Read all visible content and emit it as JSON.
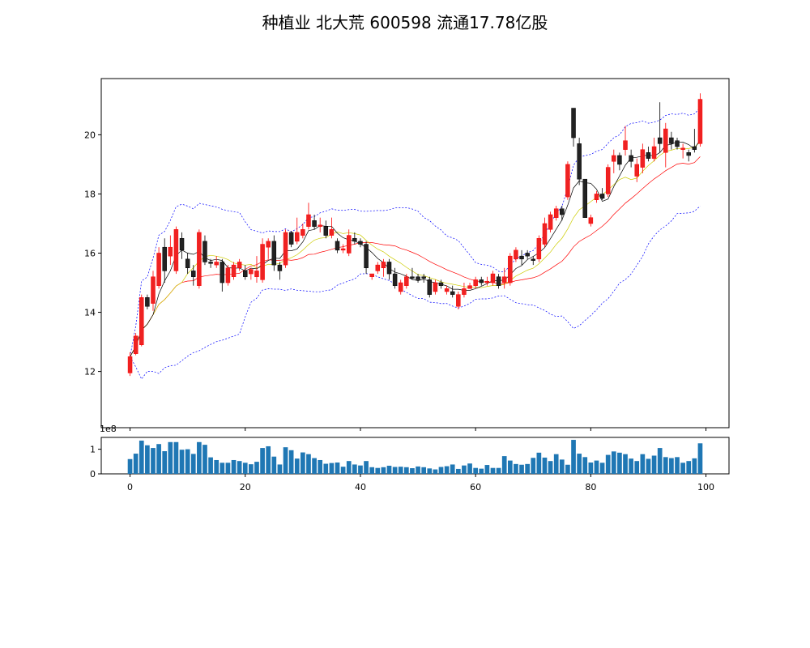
{
  "title": "种植业 北大荒 600598 流通17.78亿股",
  "colors": {
    "up": "#ff0000",
    "down": "#000000",
    "ma5": "#000000",
    "ma10": "#cccc00",
    "ma20": "#ff0000",
    "boll": "#0000ff",
    "volume": "#1f77b4"
  },
  "chart_data": [
    {
      "type": "candlestick",
      "name": "price",
      "ylim": [
        10.1,
        21.9
      ],
      "yticks": [
        12,
        14,
        16,
        18,
        20
      ],
      "xlim": [
        -5,
        104
      ],
      "xticks": [
        0,
        20,
        40,
        60,
        80,
        100
      ],
      "grid": false,
      "candles": [
        {
          "o": 11.95,
          "h": 12.65,
          "l": 11.85,
          "c": 12.5
        },
        {
          "o": 12.6,
          "h": 13.3,
          "l": 12.55,
          "c": 13.2
        },
        {
          "o": 12.9,
          "h": 14.6,
          "l": 12.85,
          "c": 14.5
        },
        {
          "o": 14.5,
          "h": 14.6,
          "l": 14.1,
          "c": 14.2
        },
        {
          "o": 14.3,
          "h": 15.4,
          "l": 14.05,
          "c": 15.2
        },
        {
          "o": 14.9,
          "h": 16.2,
          "l": 14.8,
          "c": 16.0
        },
        {
          "o": 16.2,
          "h": 16.5,
          "l": 15.0,
          "c": 15.4
        },
        {
          "o": 15.9,
          "h": 16.6,
          "l": 15.6,
          "c": 16.2
        },
        {
          "o": 15.4,
          "h": 16.9,
          "l": 15.3,
          "c": 16.8
        },
        {
          "o": 16.5,
          "h": 16.7,
          "l": 15.8,
          "c": 16.1
        },
        {
          "o": 15.8,
          "h": 16.0,
          "l": 15.3,
          "c": 15.5
        },
        {
          "o": 15.4,
          "h": 15.6,
          "l": 14.9,
          "c": 15.2
        },
        {
          "o": 14.9,
          "h": 16.8,
          "l": 14.8,
          "c": 16.7
        },
        {
          "o": 16.4,
          "h": 16.6,
          "l": 15.6,
          "c": 15.7
        },
        {
          "o": 15.7,
          "h": 15.8,
          "l": 15.5,
          "c": 15.65
        },
        {
          "o": 15.6,
          "h": 15.9,
          "l": 15.5,
          "c": 15.7
        },
        {
          "o": 15.7,
          "h": 15.8,
          "l": 14.7,
          "c": 15.0
        },
        {
          "o": 15.0,
          "h": 15.6,
          "l": 14.9,
          "c": 15.5
        },
        {
          "o": 15.2,
          "h": 15.7,
          "l": 15.1,
          "c": 15.6
        },
        {
          "o": 15.5,
          "h": 15.8,
          "l": 15.4,
          "c": 15.7
        },
        {
          "o": 15.4,
          "h": 15.6,
          "l": 15.1,
          "c": 15.2
        },
        {
          "o": 15.3,
          "h": 15.5,
          "l": 15.1,
          "c": 15.45
        },
        {
          "o": 15.2,
          "h": 15.9,
          "l": 15.0,
          "c": 15.4
        },
        {
          "o": 15.1,
          "h": 16.5,
          "l": 15.0,
          "c": 16.3
        },
        {
          "o": 16.2,
          "h": 16.5,
          "l": 15.8,
          "c": 16.4
        },
        {
          "o": 16.4,
          "h": 16.6,
          "l": 15.4,
          "c": 15.6
        },
        {
          "o": 15.6,
          "h": 15.7,
          "l": 15.1,
          "c": 15.4
        },
        {
          "o": 15.6,
          "h": 16.8,
          "l": 15.5,
          "c": 16.7
        },
        {
          "o": 16.7,
          "h": 16.75,
          "l": 16.2,
          "c": 16.3
        },
        {
          "o": 16.4,
          "h": 17.2,
          "l": 16.3,
          "c": 16.7
        },
        {
          "o": 16.6,
          "h": 17.0,
          "l": 16.5,
          "c": 16.8
        },
        {
          "o": 16.9,
          "h": 17.7,
          "l": 16.8,
          "c": 17.3
        },
        {
          "o": 17.1,
          "h": 17.3,
          "l": 16.8,
          "c": 16.9
        },
        {
          "o": 16.9,
          "h": 17.2,
          "l": 16.7,
          "c": 16.95
        },
        {
          "o": 16.9,
          "h": 17.1,
          "l": 16.5,
          "c": 16.6
        },
        {
          "o": 16.6,
          "h": 17.2,
          "l": 16.5,
          "c": 16.8
        },
        {
          "o": 16.4,
          "h": 16.5,
          "l": 16.0,
          "c": 16.1
        },
        {
          "o": 16.1,
          "h": 16.3,
          "l": 16.0,
          "c": 16.15
        },
        {
          "o": 16.0,
          "h": 16.8,
          "l": 15.9,
          "c": 16.6
        },
        {
          "o": 16.5,
          "h": 16.7,
          "l": 16.3,
          "c": 16.4
        },
        {
          "o": 16.4,
          "h": 16.5,
          "l": 16.2,
          "c": 16.3
        },
        {
          "o": 16.3,
          "h": 16.4,
          "l": 15.3,
          "c": 15.5
        },
        {
          "o": 15.2,
          "h": 15.3,
          "l": 15.1,
          "c": 15.3
        },
        {
          "o": 15.4,
          "h": 15.7,
          "l": 15.3,
          "c": 15.6
        },
        {
          "o": 15.5,
          "h": 15.8,
          "l": 15.2,
          "c": 15.7
        },
        {
          "o": 15.7,
          "h": 15.8,
          "l": 15.1,
          "c": 15.3
        },
        {
          "o": 15.3,
          "h": 15.5,
          "l": 14.8,
          "c": 14.9
        },
        {
          "o": 14.7,
          "h": 15.1,
          "l": 14.6,
          "c": 15.0
        },
        {
          "o": 14.9,
          "h": 15.3,
          "l": 14.8,
          "c": 15.2
        },
        {
          "o": 15.2,
          "h": 15.5,
          "l": 15.1,
          "c": 15.15
        },
        {
          "o": 15.2,
          "h": 15.3,
          "l": 15.0,
          "c": 15.1
        },
        {
          "o": 15.2,
          "h": 15.3,
          "l": 15.0,
          "c": 15.15
        },
        {
          "o": 15.1,
          "h": 15.2,
          "l": 14.5,
          "c": 14.6
        },
        {
          "o": 14.7,
          "h": 15.1,
          "l": 14.6,
          "c": 15.0
        },
        {
          "o": 15.0,
          "h": 15.1,
          "l": 14.8,
          "c": 14.9
        },
        {
          "o": 14.7,
          "h": 14.9,
          "l": 14.6,
          "c": 14.8
        },
        {
          "o": 14.7,
          "h": 14.9,
          "l": 14.5,
          "c": 14.6
        },
        {
          "o": 14.2,
          "h": 14.7,
          "l": 14.1,
          "c": 14.6
        },
        {
          "o": 14.6,
          "h": 15.0,
          "l": 14.5,
          "c": 14.8
        },
        {
          "o": 14.8,
          "h": 15.0,
          "l": 14.8,
          "c": 14.9
        },
        {
          "o": 14.9,
          "h": 15.2,
          "l": 14.8,
          "c": 15.1
        },
        {
          "o": 15.1,
          "h": 15.2,
          "l": 14.9,
          "c": 15.0
        },
        {
          "o": 15.0,
          "h": 15.2,
          "l": 14.9,
          "c": 15.05
        },
        {
          "o": 15.0,
          "h": 15.4,
          "l": 14.9,
          "c": 15.3
        },
        {
          "o": 15.2,
          "h": 15.3,
          "l": 14.8,
          "c": 14.9
        },
        {
          "o": 15.0,
          "h": 15.5,
          "l": 14.8,
          "c": 15.2
        },
        {
          "o": 15.0,
          "h": 16.0,
          "l": 14.9,
          "c": 15.9
        },
        {
          "o": 15.8,
          "h": 16.2,
          "l": 15.7,
          "c": 16.1
        },
        {
          "o": 15.9,
          "h": 16.1,
          "l": 15.6,
          "c": 15.8
        },
        {
          "o": 16.0,
          "h": 16.1,
          "l": 15.8,
          "c": 15.9
        },
        {
          "o": 15.8,
          "h": 15.9,
          "l": 15.6,
          "c": 15.75
        },
        {
          "o": 15.8,
          "h": 16.6,
          "l": 15.7,
          "c": 16.5
        },
        {
          "o": 16.3,
          "h": 17.2,
          "l": 16.2,
          "c": 17.0
        },
        {
          "o": 16.8,
          "h": 17.4,
          "l": 16.7,
          "c": 17.3
        },
        {
          "o": 17.2,
          "h": 17.6,
          "l": 17.1,
          "c": 17.5
        },
        {
          "o": 17.5,
          "h": 17.6,
          "l": 17.1,
          "c": 17.3
        },
        {
          "o": 17.9,
          "h": 19.1,
          "l": 17.8,
          "c": 19.0
        },
        {
          "o": 20.9,
          "h": 20.9,
          "l": 19.6,
          "c": 19.9
        },
        {
          "o": 19.7,
          "h": 19.9,
          "l": 18.3,
          "c": 18.5
        },
        {
          "o": 18.5,
          "h": 18.5,
          "l": 17.2,
          "c": 17.2
        },
        {
          "o": 17.0,
          "h": 17.3,
          "l": 16.9,
          "c": 17.2
        },
        {
          "o": 17.8,
          "h": 18.1,
          "l": 17.7,
          "c": 18.0
        },
        {
          "o": 18.0,
          "h": 18.2,
          "l": 17.8,
          "c": 17.85
        },
        {
          "o": 18.0,
          "h": 19.0,
          "l": 17.9,
          "c": 18.9
        },
        {
          "o": 19.1,
          "h": 19.5,
          "l": 18.7,
          "c": 19.3
        },
        {
          "o": 19.3,
          "h": 19.4,
          "l": 18.8,
          "c": 19.0
        },
        {
          "o": 19.5,
          "h": 20.3,
          "l": 19.3,
          "c": 19.8
        },
        {
          "o": 19.3,
          "h": 19.5,
          "l": 18.9,
          "c": 19.1
        },
        {
          "o": 18.6,
          "h": 19.2,
          "l": 18.4,
          "c": 19.0
        },
        {
          "o": 18.9,
          "h": 19.7,
          "l": 18.7,
          "c": 19.5
        },
        {
          "o": 19.4,
          "h": 19.6,
          "l": 19.1,
          "c": 19.2
        },
        {
          "o": 19.2,
          "h": 19.9,
          "l": 19.1,
          "c": 19.6
        },
        {
          "o": 19.9,
          "h": 21.1,
          "l": 19.4,
          "c": 19.7
        },
        {
          "o": 19.4,
          "h": 20.4,
          "l": 18.9,
          "c": 20.2
        },
        {
          "o": 19.9,
          "h": 20.1,
          "l": 19.5,
          "c": 19.7
        },
        {
          "o": 19.8,
          "h": 19.9,
          "l": 19.5,
          "c": 19.6
        },
        {
          "o": 19.5,
          "h": 19.7,
          "l": 19.2,
          "c": 19.55
        },
        {
          "o": 19.4,
          "h": 19.5,
          "l": 19.1,
          "c": 19.3
        },
        {
          "o": 19.6,
          "h": 20.2,
          "l": 19.4,
          "c": 19.5
        },
        {
          "o": 19.7,
          "h": 21.4,
          "l": 19.6,
          "c": 21.2
        }
      ]
    },
    {
      "type": "bar",
      "name": "volume",
      "ylim": [
        0,
        1.48
      ],
      "yticks": [
        0,
        1
      ],
      "offset_label": "1e8",
      "xlim": [
        -5,
        104
      ],
      "xticks": [
        0,
        20,
        40,
        60,
        80,
        100
      ],
      "values": [
        0.6,
        0.82,
        1.35,
        1.16,
        1.05,
        1.21,
        0.92,
        1.29,
        1.29,
        0.98,
        1.0,
        0.81,
        1.29,
        1.18,
        0.67,
        0.56,
        0.45,
        0.45,
        0.56,
        0.52,
        0.45,
        0.39,
        0.49,
        1.05,
        1.12,
        0.7,
        0.38,
        1.08,
        0.96,
        0.62,
        0.87,
        0.8,
        0.64,
        0.56,
        0.41,
        0.44,
        0.46,
        0.29,
        0.52,
        0.38,
        0.34,
        0.52,
        0.27,
        0.24,
        0.27,
        0.33,
        0.28,
        0.29,
        0.27,
        0.23,
        0.3,
        0.27,
        0.22,
        0.18,
        0.28,
        0.31,
        0.38,
        0.2,
        0.34,
        0.42,
        0.24,
        0.21,
        0.36,
        0.24,
        0.24,
        0.72,
        0.54,
        0.4,
        0.37,
        0.4,
        0.65,
        0.86,
        0.66,
        0.52,
        0.8,
        0.58,
        0.37,
        1.38,
        0.82,
        0.68,
        0.46,
        0.54,
        0.45,
        0.77,
        0.91,
        0.86,
        0.8,
        0.62,
        0.52,
        0.8,
        0.61,
        0.74,
        1.05,
        0.68,
        0.64,
        0.68,
        0.45,
        0.52,
        0.63,
        1.24
      ]
    }
  ]
}
